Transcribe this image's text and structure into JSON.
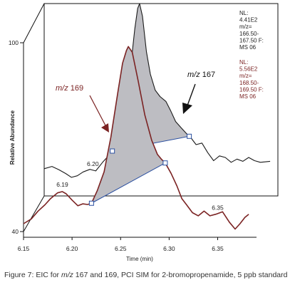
{
  "caption": {
    "prefix": "Figure 7: EIC for ",
    "mz_italic": "m/z",
    "suffix": " 167 and 169, PCI SIM for 2-bromopropenamide, 5 ppb standard"
  },
  "colors": {
    "mz167_trace": "#1a1a1a",
    "mz169_trace": "#7b2323",
    "peak_fill": "#bdbdc2",
    "baseline": "#2a4fa0",
    "nl_167_text": "#222222",
    "nl_169_text": "#7b2323"
  },
  "chart_data": {
    "type": "line",
    "style": "3d-offset stacked chromatograms",
    "xlabel": "Time (min)",
    "ylabel": "Relative Abundance",
    "xlim": [
      6.15,
      6.39
    ],
    "ylim": [
      40,
      100
    ],
    "x_ticks": [
      "6.15",
      "6.20",
      "6.25",
      "6.30",
      "6.35"
    ],
    "y_ticks": [
      "40",
      "100"
    ],
    "series": [
      {
        "name": "m/z 169",
        "nl_lines": [
          "NL:",
          "5.56E2",
          "m/z=",
          "168.50-",
          "169.50 F:",
          "MS 06"
        ],
        "label_prefix": "m/z",
        "label_suffix": " 169",
        "points": [
          [
            6.15,
            42.5
          ],
          [
            6.158,
            44.0
          ],
          [
            6.165,
            46.5
          ],
          [
            6.172,
            48.5
          ],
          [
            6.178,
            50.5
          ],
          [
            6.185,
            52.3
          ],
          [
            6.19,
            52.7
          ],
          [
            6.194,
            52.0
          ],
          [
            6.2,
            50.0
          ],
          [
            6.206,
            48.2
          ],
          [
            6.211,
            48.8
          ],
          [
            6.216,
            48.6
          ],
          [
            6.22,
            49.0
          ],
          [
            6.226,
            53.0
          ],
          [
            6.233,
            59.0
          ],
          [
            6.24,
            70.0
          ],
          [
            6.247,
            84.0
          ],
          [
            6.252,
            93.5
          ],
          [
            6.256,
            97.5
          ],
          [
            6.258,
            98.8
          ],
          [
            6.262,
            97.0
          ],
          [
            6.268,
            88.0
          ],
          [
            6.275,
            77.0
          ],
          [
            6.282,
            69.0
          ],
          [
            6.288,
            64.5
          ],
          [
            6.292,
            63.0
          ],
          [
            6.296,
            61.8
          ],
          [
            6.302,
            58.5
          ],
          [
            6.308,
            54.5
          ],
          [
            6.313,
            50.5
          ],
          [
            6.318,
            48.5
          ],
          [
            6.324,
            46.0
          ],
          [
            6.33,
            45.0
          ],
          [
            6.336,
            46.5
          ],
          [
            6.342,
            45.0
          ],
          [
            6.348,
            45.5
          ],
          [
            6.355,
            46.3
          ],
          [
            6.362,
            43.0
          ],
          [
            6.368,
            40.8
          ],
          [
            6.373,
            42.5
          ],
          [
            6.378,
            44.5
          ],
          [
            6.382,
            45.5
          ]
        ],
        "peak_start": 6.22,
        "peak_end": 6.296,
        "annotations": [
          {
            "x": 6.19,
            "text": "6.19"
          },
          {
            "x": 6.35,
            "text": "6.35"
          }
        ]
      },
      {
        "name": "m/z 167",
        "nl_lines": [
          "NL:",
          "4.41E2",
          "m/z=",
          "166.50-",
          "167.50 F:",
          "MS 06"
        ],
        "label_prefix": "m/z",
        "label_suffix": " 167",
        "points": [
          [
            6.15,
            48.5
          ],
          [
            6.158,
            49.2
          ],
          [
            6.165,
            48.2
          ],
          [
            6.172,
            47.0
          ],
          [
            6.178,
            45.8
          ],
          [
            6.184,
            46.3
          ],
          [
            6.19,
            47.5
          ],
          [
            6.197,
            48.3
          ],
          [
            6.203,
            47.8
          ],
          [
            6.21,
            50.5
          ],
          [
            6.216,
            52.5
          ],
          [
            6.22,
            54.0
          ],
          [
            6.224,
            52.3
          ],
          [
            6.228,
            56.0
          ],
          [
            6.233,
            64.0
          ],
          [
            6.238,
            78.0
          ],
          [
            6.243,
            92.0
          ],
          [
            6.246,
            98.5
          ],
          [
            6.248,
            100.0
          ],
          [
            6.251,
            96.0
          ],
          [
            6.255,
            85.0
          ],
          [
            6.259,
            78.0
          ],
          [
            6.264,
            73.0
          ],
          [
            6.269,
            71.0
          ],
          [
            6.275,
            69.5
          ],
          [
            6.28,
            66.5
          ],
          [
            6.285,
            63.2
          ],
          [
            6.29,
            61.5
          ],
          [
            6.296,
            59.5
          ],
          [
            6.301,
            58.0
          ],
          [
            6.306,
            56.0
          ],
          [
            6.312,
            56.5
          ],
          [
            6.318,
            53.5
          ],
          [
            6.324,
            51.0
          ],
          [
            6.33,
            52.5
          ],
          [
            6.336,
            52.0
          ],
          [
            6.342,
            50.5
          ],
          [
            6.348,
            51.5
          ],
          [
            6.354,
            50.8
          ],
          [
            6.36,
            52.0
          ],
          [
            6.366,
            51.0
          ],
          [
            6.372,
            50.5
          ],
          [
            6.382,
            50.8
          ]
        ],
        "peak_start": 6.22,
        "peak_end": 6.299,
        "annotations": [
          {
            "x": 6.2,
            "text": "6.20"
          }
        ]
      }
    ]
  }
}
